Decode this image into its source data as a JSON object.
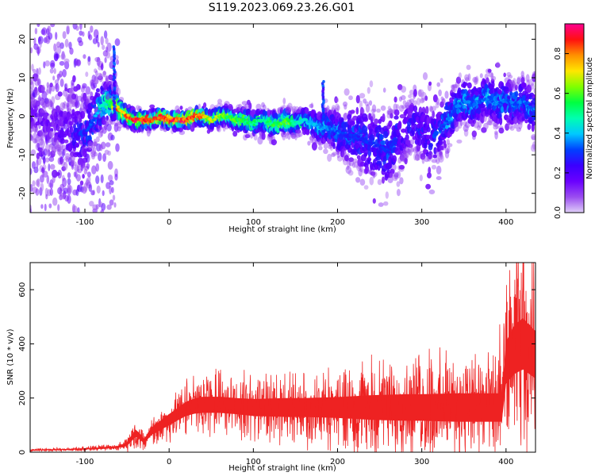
{
  "title": "S119.2023.069.23.26.G01",
  "chart_data": [
    {
      "type": "heatmap",
      "xlabel": "Height of straight line (km)",
      "ylabel": "Frequency (Hz)",
      "xlim": [
        -165,
        435
      ],
      "ylim": [
        -25,
        24
      ],
      "xticks": [
        -100,
        0,
        100,
        200,
        300,
        400
      ],
      "yticks": [
        -20,
        -10,
        0,
        10,
        20
      ],
      "colorbar": {
        "label": "Normalized spectral amplitude",
        "range": [
          0.0,
          0.95
        ],
        "ticks": [
          "0.0",
          "0.2",
          "0.4",
          "0.6",
          "0.8"
        ],
        "colors": [
          "#e0d0f8",
          "#9a4cf0",
          "#6a00ff",
          "#3a00ff",
          "#0040ff",
          "#00c8ff",
          "#00ffb0",
          "#00ff40",
          "#80ff00",
          "#ffe600",
          "#ff9000",
          "#ff1010",
          "#ff0090"
        ]
      },
      "ridge": {
        "x": [
          -160,
          -140,
          -120,
          -100,
          -90,
          -80,
          -70,
          -60,
          -50,
          -40,
          -30,
          -20,
          -10,
          0,
          10,
          20,
          30,
          40,
          50,
          60,
          70,
          80,
          90,
          100,
          110,
          120,
          130,
          140,
          150,
          160,
          170,
          180,
          190,
          200,
          210,
          220,
          230,
          240,
          250,
          260,
          270,
          280,
          290,
          300,
          310,
          320,
          330,
          340,
          350,
          360,
          370,
          380,
          390,
          400,
          410,
          420,
          430
        ],
        "y": [
          0,
          -2,
          -4,
          -5,
          -1,
          3,
          4,
          2,
          0,
          -1,
          -1,
          -1,
          0,
          -1,
          -1,
          -1,
          0,
          0,
          -1,
          0,
          0,
          -1,
          -1,
          -2,
          -1,
          -2,
          -2,
          -1,
          -2,
          -1,
          -2,
          -3,
          -3,
          -4,
          -5,
          -5,
          -6,
          -7,
          -8,
          -9,
          -6,
          -4,
          -2,
          -4,
          -6,
          -4,
          -1,
          2,
          4,
          3,
          4,
          5,
          3,
          4,
          3,
          4,
          2
        ],
        "width": [
          9,
          9,
          9,
          9,
          8,
          6,
          5,
          3,
          2.5,
          2,
          2,
          2,
          2,
          2,
          2,
          2,
          2,
          2,
          2,
          2.5,
          2.5,
          2.5,
          3,
          3,
          3,
          3,
          3,
          3,
          3,
          3,
          3.5,
          4,
          5,
          6,
          7,
          8,
          9,
          10,
          10,
          10,
          9,
          8,
          8,
          9,
          9,
          8,
          7,
          6,
          6,
          6,
          6,
          6,
          6,
          6,
          6,
          6,
          6
        ],
        "peak": [
          0.15,
          0.15,
          0.2,
          0.3,
          0.35,
          0.45,
          0.55,
          0.75,
          0.85,
          0.9,
          0.92,
          0.92,
          0.9,
          0.9,
          0.88,
          0.9,
          0.85,
          0.8,
          0.7,
          0.65,
          0.6,
          0.6,
          0.55,
          0.55,
          0.5,
          0.55,
          0.6,
          0.6,
          0.5,
          0.45,
          0.4,
          0.4,
          0.35,
          0.35,
          0.3,
          0.3,
          0.3,
          0.3,
          0.3,
          0.3,
          0.3,
          0.25,
          0.25,
          0.25,
          0.25,
          0.3,
          0.35,
          0.35,
          0.35,
          0.35,
          0.35,
          0.35,
          0.35,
          0.35,
          0.35,
          0.35,
          0.35
        ]
      },
      "spikes": [
        {
          "x": -65,
          "y0": 1,
          "y1": 18
        },
        {
          "x": 183,
          "y0": -1,
          "y1": 9
        }
      ]
    },
    {
      "type": "line",
      "xlabel": "Height of straight line (km)",
      "ylabel": "SNR (10 * v/v)",
      "xlim": [
        -165,
        435
      ],
      "ylim": [
        0,
        700
      ],
      "xticks": [
        -100,
        0,
        100,
        200,
        300,
        400
      ],
      "yticks": [
        0,
        200,
        400,
        600
      ],
      "color": "#ee2222",
      "envelope": {
        "x": [
          -165,
          -120,
          -80,
          -60,
          -50,
          -45,
          -40,
          -35,
          -30,
          -25,
          -20,
          -10,
          0,
          10,
          20,
          30,
          40,
          60,
          80,
          100,
          120,
          140,
          160,
          180,
          200,
          220,
          240,
          260,
          280,
          300,
          320,
          340,
          360,
          380,
          395,
          400,
          410,
          420,
          435
        ],
        "mean": [
          8,
          10,
          15,
          20,
          30,
          50,
          70,
          60,
          40,
          60,
          80,
          100,
          120,
          140,
          160,
          170,
          175,
          175,
          170,
          165,
          165,
          165,
          165,
          165,
          165,
          165,
          165,
          165,
          165,
          165,
          165,
          165,
          165,
          165,
          165,
          330,
          380,
          400,
          360
        ],
        "spread": [
          4,
          5,
          8,
          10,
          20,
          30,
          40,
          30,
          25,
          30,
          40,
          50,
          60,
          65,
          75,
          80,
          85,
          85,
          85,
          90,
          95,
          100,
          100,
          105,
          110,
          120,
          130,
          135,
          140,
          140,
          145,
          150,
          150,
          150,
          150,
          220,
          260,
          270,
          250
        ]
      }
    }
  ]
}
